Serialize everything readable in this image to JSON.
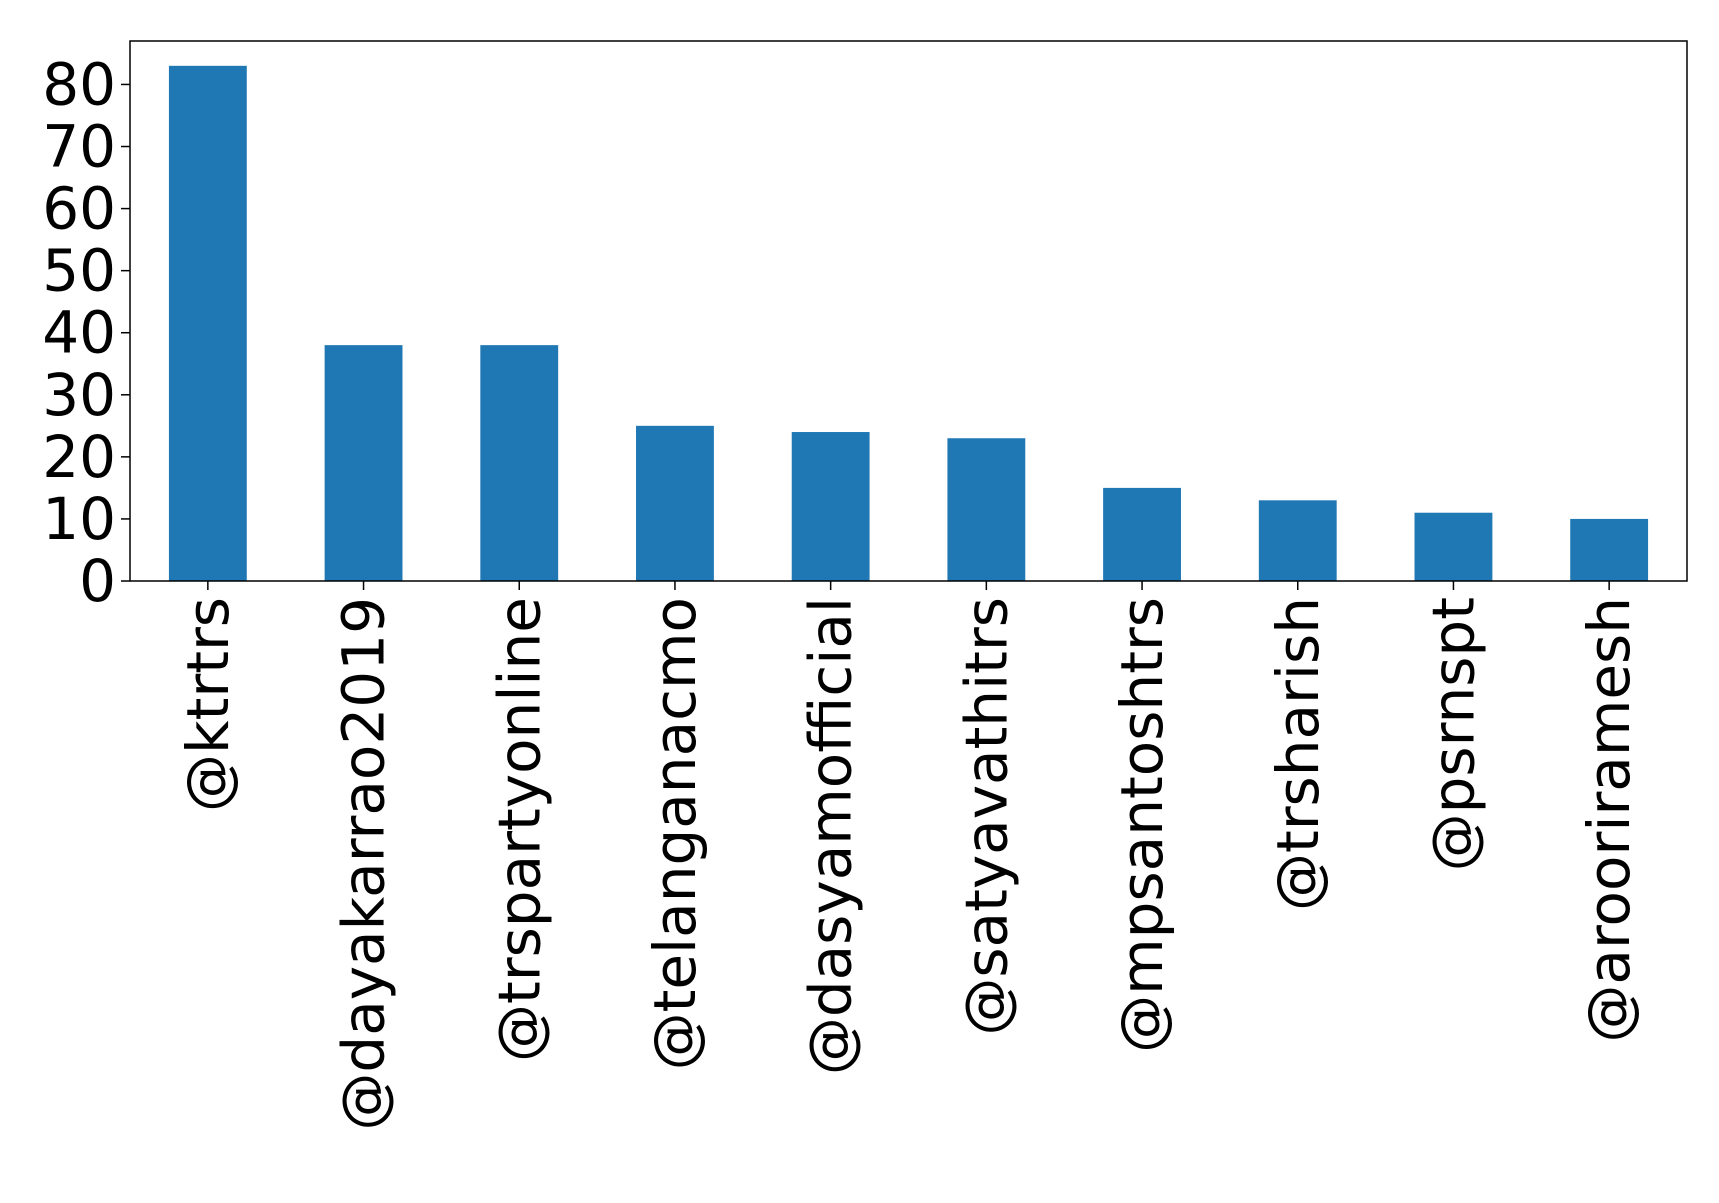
{
  "chart_data": {
    "type": "bar",
    "title": "",
    "xlabel": "",
    "ylabel": "",
    "categories": [
      "@ktrtrs",
      "@dayakarrao2019",
      "@trspartyonline",
      "@telanganacmo",
      "@dasyamofficial",
      "@satyavathitrs",
      "@mpsantoshtrs",
      "@trsharish",
      "@psrnspt",
      "@arooriramesh"
    ],
    "values": [
      83,
      38,
      38,
      25,
      24,
      23,
      15,
      13,
      11,
      10
    ],
    "ylim": [
      0,
      87
    ],
    "yticks": [
      0,
      10,
      20,
      30,
      40,
      50,
      60,
      70,
      80
    ],
    "grid": false,
    "bar_color": "#1f77b4"
  }
}
